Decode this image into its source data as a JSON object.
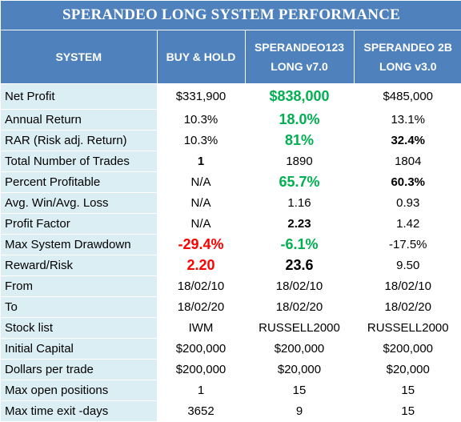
{
  "title": "SPERANDEO LONG SYSTEM PERFORMANCE",
  "headers": {
    "system": "SYSTEM",
    "buy_hold": "BUY & HOLD",
    "s123_line1": "SPERANDEO123",
    "s123_line2": "LONG v7.0",
    "s2b_line1": "SPERANDEO 2B",
    "s2b_line2": "LONG v3.0"
  },
  "rows": [
    {
      "label": " Net Profit",
      "buy_hold": "$331,900",
      "s123": "$838,000",
      "s2b": "$485,000"
    },
    {
      "label": "Annual Return",
      "buy_hold": "10.3%",
      "s123": "18.0%",
      "s2b": "13.1%"
    },
    {
      "label": " RAR (Risk adj. Return)",
      "buy_hold": "10.3%",
      "s123": "81%",
      "s2b": "32.4%"
    },
    {
      "label": " Total Number of Trades",
      "buy_hold": "1",
      "s123": "1890",
      "s2b": "1804"
    },
    {
      "label": " Percent Profitable",
      "buy_hold": "N/A",
      "s123": "65.7%",
      "s2b": "60.3%"
    },
    {
      "label": " Avg. Win/Avg. Loss",
      "buy_hold": "N/A",
      "s123": "1.16",
      "s2b": "0.93"
    },
    {
      "label": " Profit Factor",
      "buy_hold": "N/A",
      "s123": "2.23",
      "s2b": "1.42"
    },
    {
      "label": " Max System Drawdown",
      "buy_hold": "-29.4%",
      "s123": "-6.1%",
      "s2b": "-17.5%"
    },
    {
      "label": "Reward/Risk",
      "buy_hold": "2.20",
      "s123": "23.6",
      "s2b": "9.50"
    },
    {
      "label": "From",
      "buy_hold": "18/02/10",
      "s123": "18/02/10",
      "s2b": "18/02/10"
    },
    {
      "label": "To",
      "buy_hold": "18/02/20",
      "s123": "18/02/20",
      "s2b": "18/02/20"
    },
    {
      "label": "Stock list",
      "buy_hold": "IWM",
      "s123": "RUSSELL2000",
      "s2b": "RUSSELL2000"
    },
    {
      "label": "Initial Capital",
      "buy_hold": "$200,000",
      "s123": "$200,000",
      "s2b": "$200,000"
    },
    {
      "label": " Dollars per trade",
      "buy_hold": "$200,000",
      "s123": "$20,000",
      "s2b": "$20,000"
    },
    {
      "label": "Max open positions",
      "buy_hold": "1",
      "s123": "15",
      "s2b": "15"
    },
    {
      "label": "Max time exit -days",
      "buy_hold": "3652",
      "s123": "9",
      "s2b": "15"
    }
  ],
  "colors": {
    "header_bg": "#4f81bd",
    "label_bg": "#dbeef4",
    "highlight_green": "#00b050",
    "highlight_red": "#ff0000"
  }
}
